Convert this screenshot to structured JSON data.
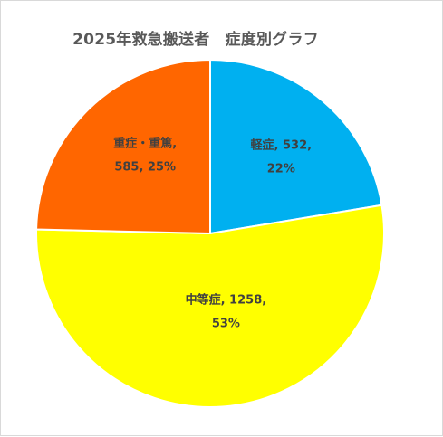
{
  "chart_data": {
    "type": "pie",
    "title": "2025年救急搬送者　症度別グラフ",
    "slices": [
      {
        "name": "軽症",
        "value": 532,
        "percent": "22%",
        "color": "#00B0F0",
        "label_lines": [
          "軽症, 532,",
          "22%"
        ]
      },
      {
        "name": "中等症",
        "value": 1258,
        "percent": "53%",
        "color": "#FFFF00",
        "label_lines": [
          "中等症, 1258,",
          "53%"
        ]
      },
      {
        "name": "重症・重篤",
        "value": 585,
        "percent": "25%",
        "color": "#FF6600",
        "label_lines": [
          "重症・重篤,",
          "585, 25%"
        ]
      }
    ],
    "start": "12 o'clock",
    "direction": "clockwise",
    "legend": "none"
  }
}
